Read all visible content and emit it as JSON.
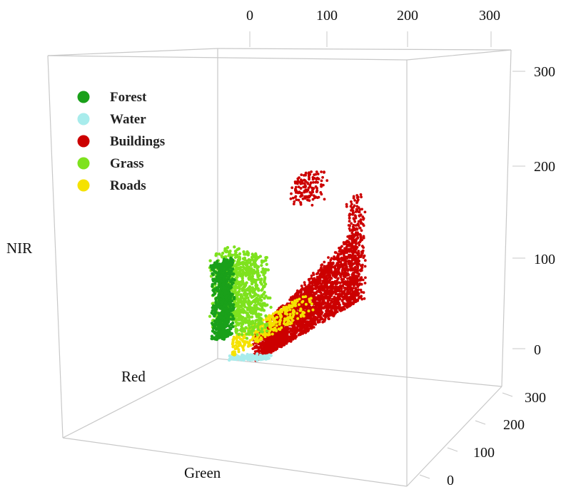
{
  "chart_data": {
    "type": "scatter",
    "subtype": "3d-scatter",
    "axes": {
      "x": {
        "label": "Red",
        "ticks": [
          "0",
          "100",
          "200",
          "300"
        ]
      },
      "y": {
        "label": "Green",
        "ticks": [
          "0",
          "100",
          "200",
          "300"
        ]
      },
      "z": {
        "label": "NIR",
        "ticks": [
          "0",
          "100",
          "200",
          "300"
        ]
      }
    },
    "ranges": {
      "x": [
        0,
        300
      ],
      "y": [
        0,
        300
      ],
      "z": [
        0,
        300
      ]
    },
    "legend_position": "top-left",
    "grid": false,
    "series": [
      {
        "name": "Forest",
        "color": "#1aa01a",
        "clusters": [
          {
            "x": [
              3,
              15
            ],
            "y": [
              0,
              25
            ],
            "z": [
              25,
              110
            ]
          }
        ]
      },
      {
        "name": "Water",
        "color": "#a8ecec",
        "clusters": [
          {
            "x": [
              15,
              55
            ],
            "y": [
              0,
              8
            ],
            "z": [
              0,
              5
            ]
          }
        ]
      },
      {
        "name": "Buildings",
        "color": "#cc0000",
        "clusters": [
          {
            "x": [
              60,
              235
            ],
            "y": [
              30,
              180
            ],
            "z": [
              10,
              150
            ]
          },
          {
            "x": [
              120,
              145
            ],
            "y": [
              60,
              90
            ],
            "z": [
              190,
              220
            ]
          },
          {
            "x": [
              228,
              236
            ],
            "y": [
              160,
              185
            ],
            "z": [
              110,
              225
            ]
          }
        ]
      },
      {
        "name": "Grass",
        "color": "#7ee21e",
        "clusters": [
          {
            "x": [
              12,
              55
            ],
            "y": [
              0,
              40
            ],
            "z": [
              45,
              125
            ]
          }
        ]
      },
      {
        "name": "Roads",
        "color": "#f5e200",
        "clusters": [
          {
            "x": [
              15,
              100
            ],
            "y": [
              0,
              50
            ],
            "z": [
              10,
              60
            ]
          }
        ]
      }
    ]
  }
}
